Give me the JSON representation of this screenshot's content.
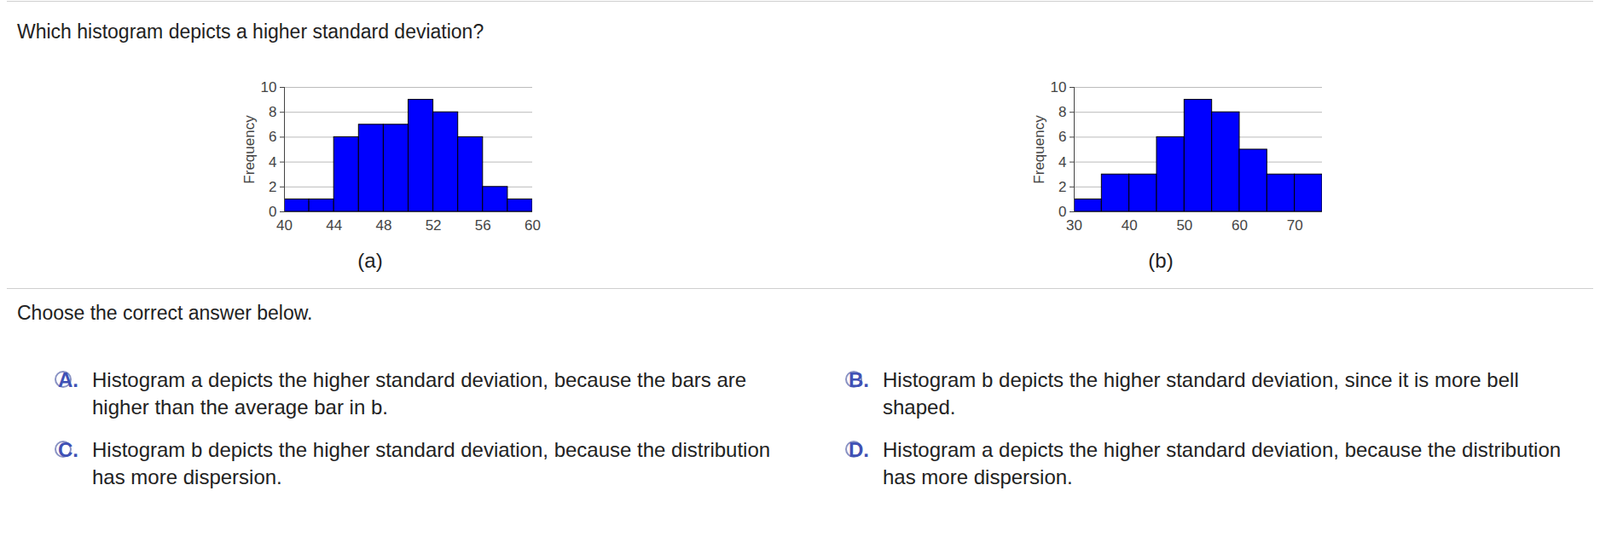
{
  "question": "Which histogram depicts a higher standard deviation?",
  "instruction": "Choose the correct answer below.",
  "options": [
    {
      "letter": "A.",
      "text": "Histogram a depicts the higher standard deviation, because the bars are higher than the average bar in b."
    },
    {
      "letter": "B.",
      "text": "Histogram b depicts the higher standard deviation, since it is more bell shaped."
    },
    {
      "letter": "C.",
      "text": "Histogram b depicts the higher standard deviation, because the distribution has more dispersion."
    },
    {
      "letter": "D.",
      "text": "Histogram a depicts the higher standard deviation, because the distribution has more dispersion."
    }
  ],
  "chart_data": [
    {
      "type": "histogram",
      "caption": "(a)",
      "ylabel": "Frequency",
      "bins": [
        40,
        42,
        44,
        46,
        48,
        50,
        52,
        54,
        56,
        58,
        60
      ],
      "values": [
        1,
        1,
        6,
        7,
        7,
        9,
        8,
        6,
        2,
        1
      ],
      "color": "#0000ff",
      "xlim": [
        40,
        60
      ],
      "xticks": [
        40,
        44,
        48,
        52,
        56,
        60
      ],
      "ylim": [
        0,
        10
      ],
      "yticks": [
        0,
        2,
        4,
        6,
        8,
        10
      ],
      "grid": true
    },
    {
      "type": "histogram",
      "caption": "(b)",
      "ylabel": "Frequency",
      "bins": [
        30,
        35,
        40,
        45,
        50,
        55,
        60,
        65,
        70,
        75
      ],
      "values": [
        1,
        3,
        3,
        6,
        9,
        8,
        5,
        3,
        3
      ],
      "color": "#0000ff",
      "xlim": [
        30,
        75
      ],
      "xticks": [
        30,
        40,
        50,
        60,
        70
      ],
      "ylim": [
        0,
        10
      ],
      "yticks": [
        0,
        2,
        4,
        6,
        8,
        10
      ],
      "grid": true
    }
  ]
}
